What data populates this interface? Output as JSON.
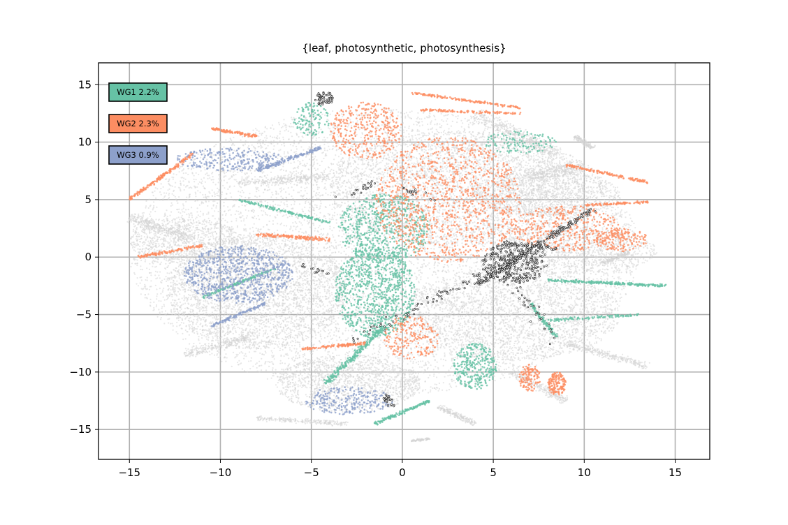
{
  "chart_data": {
    "type": "scatter",
    "title": "{leaf, photosynthetic, photosynthesis}",
    "xlabel": "",
    "ylabel": "",
    "xlim": [
      -16.7,
      16.9
    ],
    "ylim": [
      -17.6,
      16.9
    ],
    "xticks": [
      -15,
      -10,
      -5,
      0,
      5,
      10,
      15
    ],
    "yticks": [
      -15,
      -10,
      -5,
      0,
      5,
      10,
      15
    ],
    "xtick_labels": [
      "−15",
      "−10",
      "−5",
      "0",
      "5",
      "10",
      "15"
    ],
    "ytick_labels": [
      "−15",
      "−10",
      "−5",
      "0",
      "5",
      "10",
      "15"
    ],
    "grid": true,
    "legend_position": "top-left",
    "background_color": "#d3d3d3",
    "highlight_color": "#222222",
    "series": [
      {
        "name": "WG1 2.2%",
        "color": "#66c2a5"
      },
      {
        "name": "WG2 2.3%",
        "color": "#fc8d62"
      },
      {
        "name": "WG3 0.9%",
        "color": "#8da0cb"
      }
    ],
    "background_regions": [
      {
        "cx": -1.0,
        "cy": 0.5,
        "rx": 14.0,
        "ry": 12.5,
        "n": 9000
      },
      {
        "cx": 3.0,
        "cy": 6.0,
        "rx": 7.0,
        "ry": 5.0,
        "n": 2500
      },
      {
        "cx": -8.0,
        "cy": -3.0,
        "rx": 5.0,
        "ry": 5.0,
        "n": 2500
      },
      {
        "cx": 6.0,
        "cy": -5.0,
        "rx": 6.0,
        "ry": 4.0,
        "n": 2000
      },
      {
        "cx": -3.0,
        "cy": -11.0,
        "rx": 4.0,
        "ry": 2.5,
        "n": 1200
      },
      {
        "cx": 8.0,
        "cy": 5.5,
        "rx": 4.0,
        "ry": 2.0,
        "n": 900
      },
      {
        "cx": -12.0,
        "cy": 1.5,
        "rx": 3.0,
        "ry": 2.0,
        "n": 700
      },
      {
        "cx": 9.5,
        "cy": 0.5,
        "rx": 4.5,
        "ry": 2.0,
        "n": 900
      }
    ],
    "background_streaks": [
      {
        "x1": -15.0,
        "y1": 3.5,
        "x2": -11.5,
        "y2": 1.5,
        "n": 350,
        "w": 0.45
      },
      {
        "x1": -9.0,
        "y1": 6.5,
        "x2": -4.0,
        "y2": 7.0,
        "n": 300,
        "w": 0.35
      },
      {
        "x1": 4.0,
        "y1": 12.5,
        "x2": 8.5,
        "y2": 9.0,
        "n": 400,
        "w": 0.5
      },
      {
        "x1": 7.0,
        "y1": 7.0,
        "x2": 10.0,
        "y2": 8.0,
        "n": 300,
        "w": 0.6
      },
      {
        "x1": 9.0,
        "y1": -7.5,
        "x2": 13.5,
        "y2": -9.5,
        "n": 300,
        "w": 0.3
      },
      {
        "x1": 6.0,
        "y1": -10.0,
        "x2": 9.0,
        "y2": -12.5,
        "n": 250,
        "w": 0.35
      },
      {
        "x1": -12.0,
        "y1": -8.5,
        "x2": -8.5,
        "y2": -7.0,
        "n": 250,
        "w": 0.35
      },
      {
        "x1": 9.5,
        "y1": 10.5,
        "x2": 10.5,
        "y2": 9.5,
        "n": 150,
        "w": 0.2
      },
      {
        "x1": 2.0,
        "y1": -13.0,
        "x2": 4.0,
        "y2": -14.5,
        "n": 200,
        "w": 0.2
      },
      {
        "x1": 11.0,
        "y1": -0.5,
        "x2": 12.5,
        "y2": 0.5,
        "n": 150,
        "w": 0.25
      },
      {
        "x1": -8.0,
        "y1": -14.0,
        "x2": -3.0,
        "y2": -14.5,
        "n": 250,
        "w": 0.2
      },
      {
        "x1": 0.5,
        "y1": -16.0,
        "x2": 1.5,
        "y2": -15.8,
        "n": 80,
        "w": 0.1
      }
    ],
    "series_regions": [
      {
        "series": 0,
        "cx": -1.5,
        "cy": -3.0,
        "rx": 2.2,
        "ry": 4.0,
        "n": 900
      },
      {
        "series": 0,
        "cx": -1.0,
        "cy": 2.5,
        "rx": 2.5,
        "ry": 3.0,
        "n": 600
      },
      {
        "series": 0,
        "cx": 4.0,
        "cy": -9.5,
        "rx": 1.2,
        "ry": 2.0,
        "n": 300
      },
      {
        "series": 0,
        "cx": -5.0,
        "cy": 12.0,
        "rx": 1.0,
        "ry": 1.5,
        "n": 120
      },
      {
        "series": 0,
        "cx": 6.5,
        "cy": 10.0,
        "rx": 2.0,
        "ry": 1.0,
        "n": 120
      },
      {
        "series": 1,
        "cx": 2.5,
        "cy": 5.0,
        "rx": 4.0,
        "ry": 5.5,
        "n": 1100
      },
      {
        "series": 1,
        "cx": -2.0,
        "cy": 11.0,
        "rx": 2.0,
        "ry": 2.5,
        "n": 350
      },
      {
        "series": 1,
        "cx": 9.0,
        "cy": 2.5,
        "rx": 3.0,
        "ry": 2.0,
        "n": 400
      },
      {
        "series": 1,
        "cx": 0.5,
        "cy": -7.0,
        "rx": 1.5,
        "ry": 2.0,
        "n": 200
      },
      {
        "series": 1,
        "cx": 8.5,
        "cy": -11.0,
        "rx": 0.5,
        "ry": 1.0,
        "n": 150
      },
      {
        "series": 1,
        "cx": 7.0,
        "cy": -10.5,
        "rx": 0.6,
        "ry": 1.2,
        "n": 120
      },
      {
        "series": 1,
        "cx": 12.0,
        "cy": 1.5,
        "rx": 1.5,
        "ry": 1.0,
        "n": 150
      },
      {
        "series": 2,
        "cx": -9.0,
        "cy": -1.5,
        "rx": 3.0,
        "ry": 2.5,
        "n": 800
      },
      {
        "series": 2,
        "cx": -3.0,
        "cy": -12.5,
        "rx": 2.5,
        "ry": 1.2,
        "n": 250
      },
      {
        "series": 2,
        "cx": -9.5,
        "cy": 8.5,
        "rx": 3.0,
        "ry": 1.0,
        "n": 250
      }
    ],
    "series_streaks": [
      {
        "series": 0,
        "x1": 8.0,
        "y1": -2.0,
        "x2": 14.5,
        "y2": -2.5,
        "n": 250,
        "w": 0.12
      },
      {
        "series": 0,
        "x1": -1.0,
        "y1": -6.0,
        "x2": -4.2,
        "y2": -11.0,
        "n": 250,
        "w": 0.2
      },
      {
        "series": 0,
        "x1": -11.0,
        "y1": -3.5,
        "x2": -7.0,
        "y2": -1.0,
        "n": 150,
        "w": 0.1
      },
      {
        "series": 0,
        "x1": -1.5,
        "y1": -14.5,
        "x2": 1.5,
        "y2": -12.5,
        "n": 150,
        "w": 0.12
      },
      {
        "series": 0,
        "x1": -9.0,
        "y1": 5.0,
        "x2": -4.0,
        "y2": 3.0,
        "n": 150,
        "w": 0.12
      },
      {
        "series": 0,
        "x1": 7.0,
        "y1": -4.0,
        "x2": 8.5,
        "y2": -7.0,
        "n": 100,
        "w": 0.12
      },
      {
        "series": 0,
        "x1": 8.0,
        "y1": -5.5,
        "x2": 13.0,
        "y2": -5.0,
        "n": 100,
        "w": 0.12
      },
      {
        "series": 1,
        "x1": -15.0,
        "y1": 5.0,
        "x2": -11.5,
        "y2": 9.0,
        "n": 200,
        "w": 0.12
      },
      {
        "series": 1,
        "x1": -10.5,
        "y1": 11.2,
        "x2": -8.0,
        "y2": 10.5,
        "n": 120,
        "w": 0.12
      },
      {
        "series": 1,
        "x1": 0.5,
        "y1": 14.3,
        "x2": 6.5,
        "y2": 13.0,
        "n": 150,
        "w": 0.1
      },
      {
        "series": 1,
        "x1": 1.0,
        "y1": 12.8,
        "x2": 6.5,
        "y2": 12.5,
        "n": 120,
        "w": 0.1
      },
      {
        "series": 1,
        "x1": 9.0,
        "y1": 8.0,
        "x2": 13.5,
        "y2": 6.5,
        "n": 150,
        "w": 0.12
      },
      {
        "series": 1,
        "x1": -8.0,
        "y1": 2.0,
        "x2": -4.0,
        "y2": 1.5,
        "n": 150,
        "w": 0.15
      },
      {
        "series": 1,
        "x1": -5.5,
        "y1": -8.0,
        "x2": -2.0,
        "y2": -7.5,
        "n": 120,
        "w": 0.12
      },
      {
        "series": 1,
        "x1": -14.5,
        "y1": 0.0,
        "x2": -11.0,
        "y2": 1.0,
        "n": 120,
        "w": 0.12
      },
      {
        "series": 1,
        "x1": 10.0,
        "y1": 4.5,
        "x2": 13.5,
        "y2": 4.8,
        "n": 100,
        "w": 0.1
      },
      {
        "series": 2,
        "x1": -8.0,
        "y1": 7.5,
        "x2": -4.5,
        "y2": 9.5,
        "n": 150,
        "w": 0.15
      },
      {
        "series": 2,
        "x1": -10.5,
        "y1": -6.0,
        "x2": -7.5,
        "y2": -4.0,
        "n": 120,
        "w": 0.12
      }
    ],
    "highlight_regions": [
      {
        "cx": 6.2,
        "cy": -0.5,
        "rx": 1.8,
        "ry": 1.8,
        "n": 280
      },
      {
        "cx": -4.3,
        "cy": 13.8,
        "rx": 0.5,
        "ry": 0.6,
        "n": 60
      }
    ],
    "highlight_streaks": [
      {
        "x1": 4.0,
        "y1": -2.5,
        "x2": 10.5,
        "y2": 4.2,
        "n": 230,
        "w": 0.2
      },
      {
        "x1": 5.0,
        "y1": -1.0,
        "x2": -3.0,
        "y2": -7.5,
        "n": 80,
        "w": 0.35
      },
      {
        "x1": 5.0,
        "y1": 0.5,
        "x2": 8.5,
        "y2": -7.5,
        "n": 50,
        "w": 0.4
      },
      {
        "x1": 5.5,
        "y1": 1.2,
        "x2": 8.5,
        "y2": 0.8,
        "n": 60,
        "w": 0.2
      },
      {
        "x1": -1.0,
        "y1": -12.0,
        "x2": -0.5,
        "y2": -13.0,
        "n": 25,
        "w": 0.2
      },
      {
        "x1": -3.5,
        "y1": 5.0,
        "x2": -1.5,
        "y2": 6.5,
        "n": 20,
        "w": 0.3
      },
      {
        "x1": -5.5,
        "y1": -0.7,
        "x2": -4.0,
        "y2": -1.5,
        "n": 15,
        "w": 0.2
      },
      {
        "x1": 0.0,
        "y1": 6.0,
        "x2": 2.0,
        "y2": 5.0,
        "n": 15,
        "w": 0.3
      }
    ]
  }
}
